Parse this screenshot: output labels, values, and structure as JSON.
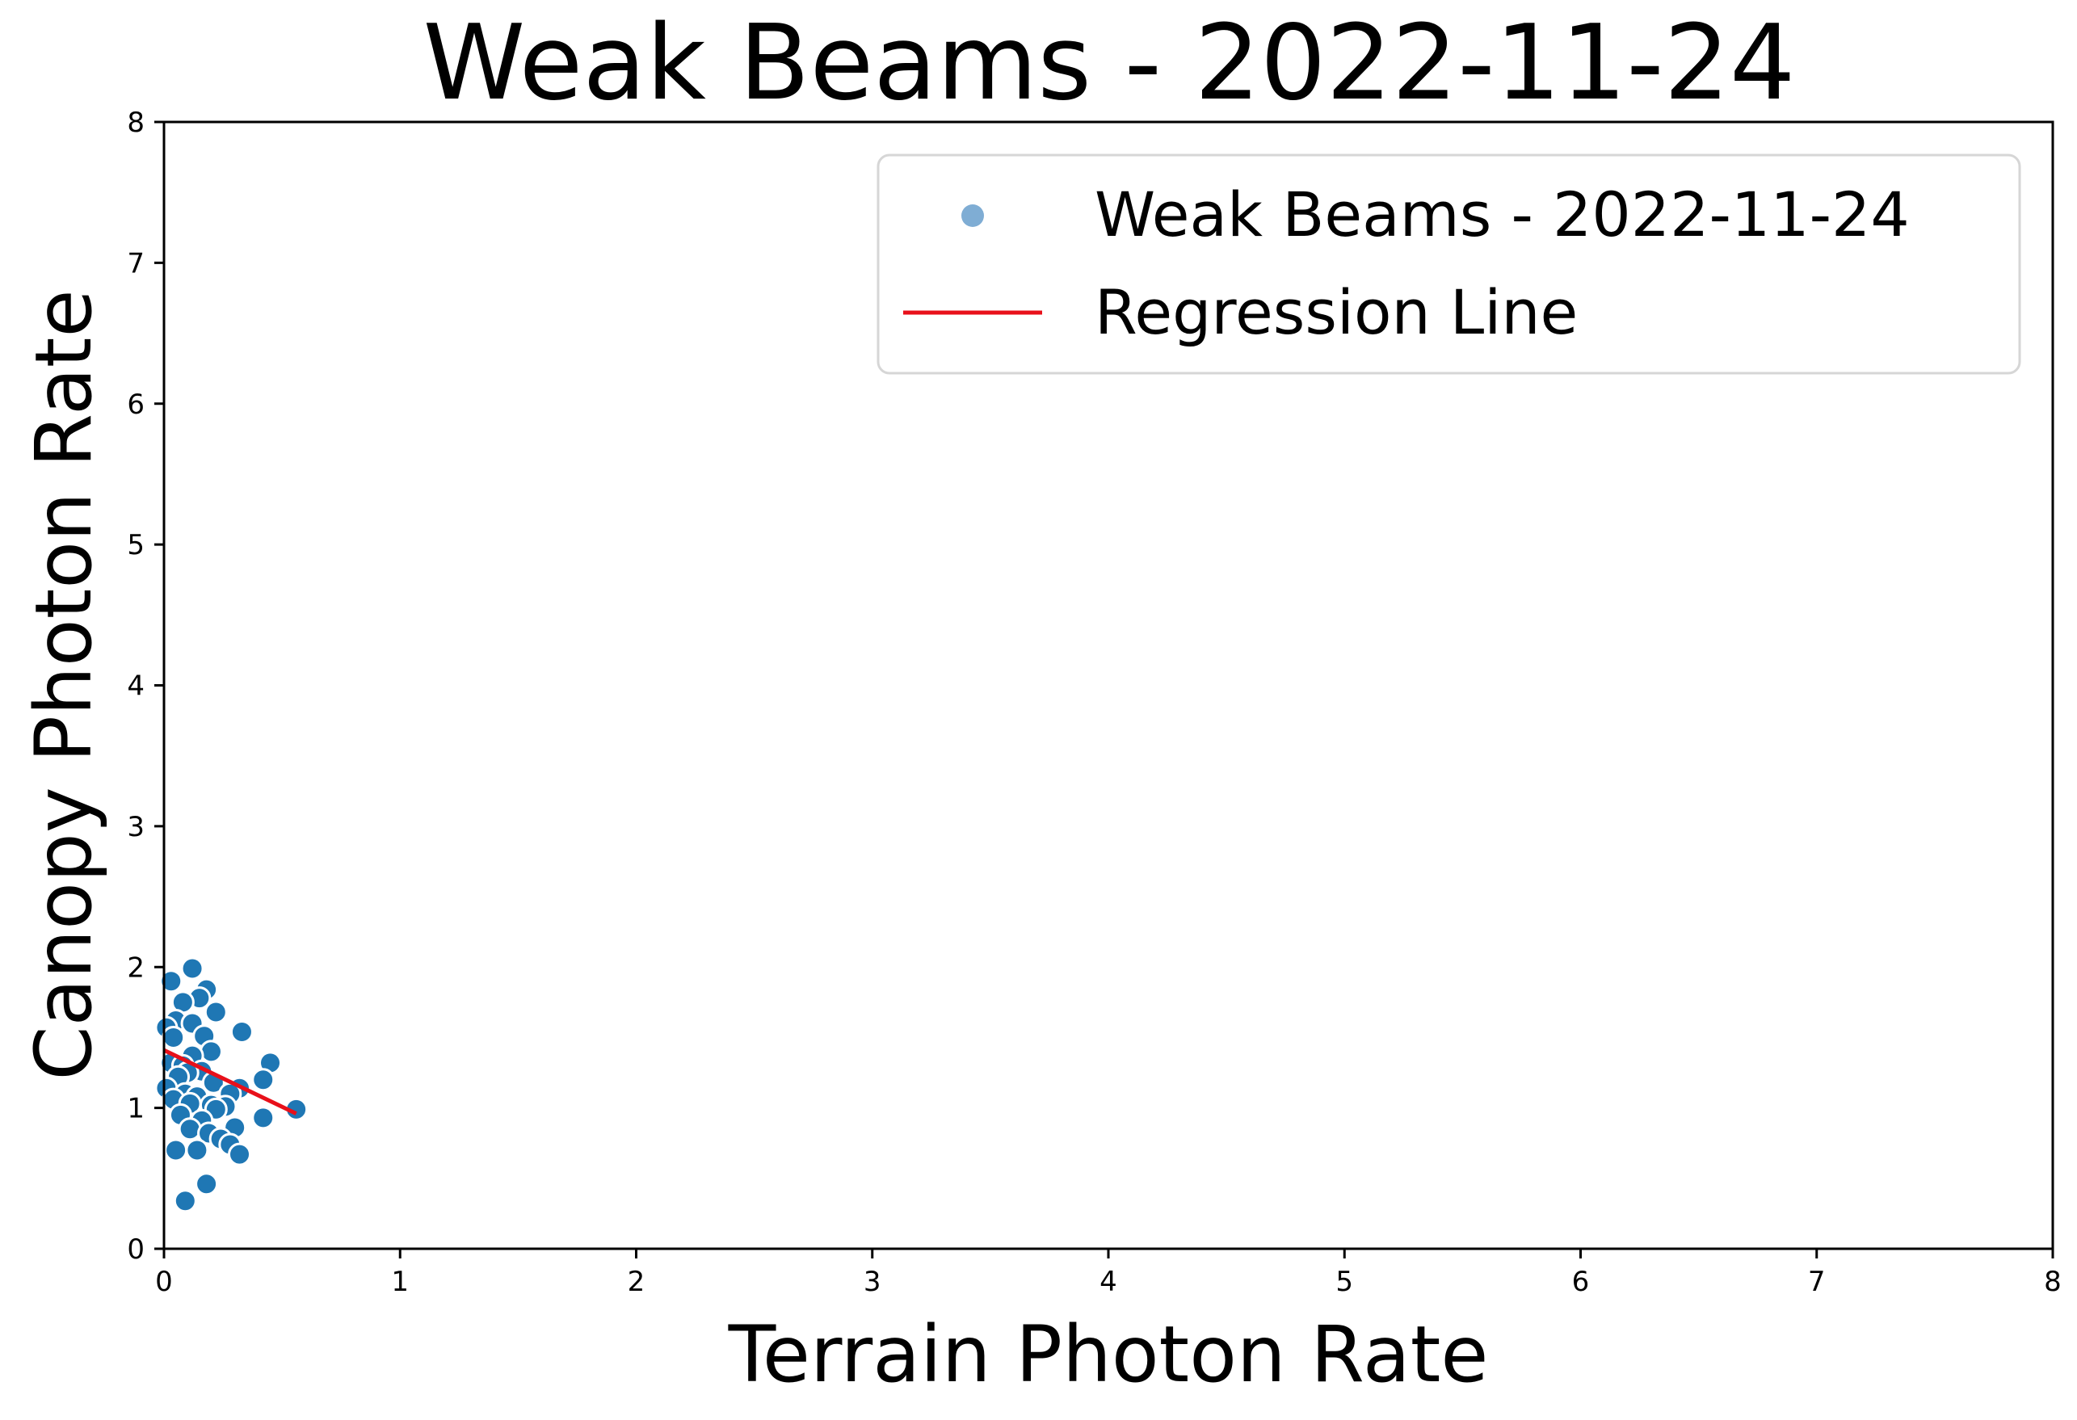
{
  "chart_data": {
    "type": "scatter",
    "title": "Weak Beams - 2022-11-24",
    "xlabel": "Terrain Photon Rate",
    "ylabel": "Canopy Photon Rate",
    "xlim": [
      0,
      8
    ],
    "ylim": [
      0,
      8
    ],
    "x_ticks": [
      "0",
      "1",
      "2",
      "3",
      "4",
      "5",
      "6",
      "7",
      "8"
    ],
    "y_ticks": [
      "0",
      "1",
      "2",
      "3",
      "4",
      "5",
      "6",
      "7",
      "8"
    ],
    "grid": false,
    "legend_position": "top-right",
    "legend": [
      {
        "label": "Weak Beams - 2022-11-24",
        "kind": "marker"
      },
      {
        "label": "Regression Line",
        "kind": "line"
      }
    ],
    "colors": {
      "points": "#1f77b4",
      "point_edge": "#ffffff",
      "legend_marker": "#7fadd4",
      "regression": "#e8101a"
    },
    "series": [
      {
        "name": "Weak Beams - 2022-11-24",
        "type": "scatter",
        "points": [
          [
            0.12,
            1.99
          ],
          [
            0.03,
            1.9
          ],
          [
            0.18,
            1.84
          ],
          [
            0.15,
            1.78
          ],
          [
            0.08,
            1.75
          ],
          [
            0.22,
            1.68
          ],
          [
            0.05,
            1.62
          ],
          [
            0.12,
            1.6
          ],
          [
            0.01,
            1.57
          ],
          [
            0.17,
            1.51
          ],
          [
            0.04,
            1.5
          ],
          [
            0.33,
            1.54
          ],
          [
            0.2,
            1.4
          ],
          [
            0.12,
            1.37
          ],
          [
            0.45,
            1.32
          ],
          [
            0.03,
            1.32
          ],
          [
            0.08,
            1.3
          ],
          [
            0.16,
            1.26
          ],
          [
            0.1,
            1.25
          ],
          [
            0.42,
            1.2
          ],
          [
            0.06,
            1.22
          ],
          [
            0.21,
            1.18
          ],
          [
            0.01,
            1.14
          ],
          [
            0.32,
            1.14
          ],
          [
            0.28,
            1.1
          ],
          [
            0.09,
            1.1
          ],
          [
            0.14,
            1.08
          ],
          [
            0.04,
            1.06
          ],
          [
            0.11,
            1.03
          ],
          [
            0.2,
            1.02
          ],
          [
            0.26,
            1.01
          ],
          [
            0.56,
            0.99
          ],
          [
            0.22,
            0.99
          ],
          [
            0.07,
            0.95
          ],
          [
            0.42,
            0.93
          ],
          [
            0.16,
            0.91
          ],
          [
            0.3,
            0.86
          ],
          [
            0.11,
            0.85
          ],
          [
            0.19,
            0.82
          ],
          [
            0.24,
            0.78
          ],
          [
            0.28,
            0.74
          ],
          [
            0.05,
            0.7
          ],
          [
            0.14,
            0.7
          ],
          [
            0.32,
            0.67
          ],
          [
            0.18,
            0.46
          ],
          [
            0.09,
            0.34
          ]
        ]
      },
      {
        "name": "Regression Line",
        "type": "line",
        "points": [
          [
            0.0,
            1.41
          ],
          [
            0.56,
            0.96
          ]
        ]
      }
    ]
  }
}
